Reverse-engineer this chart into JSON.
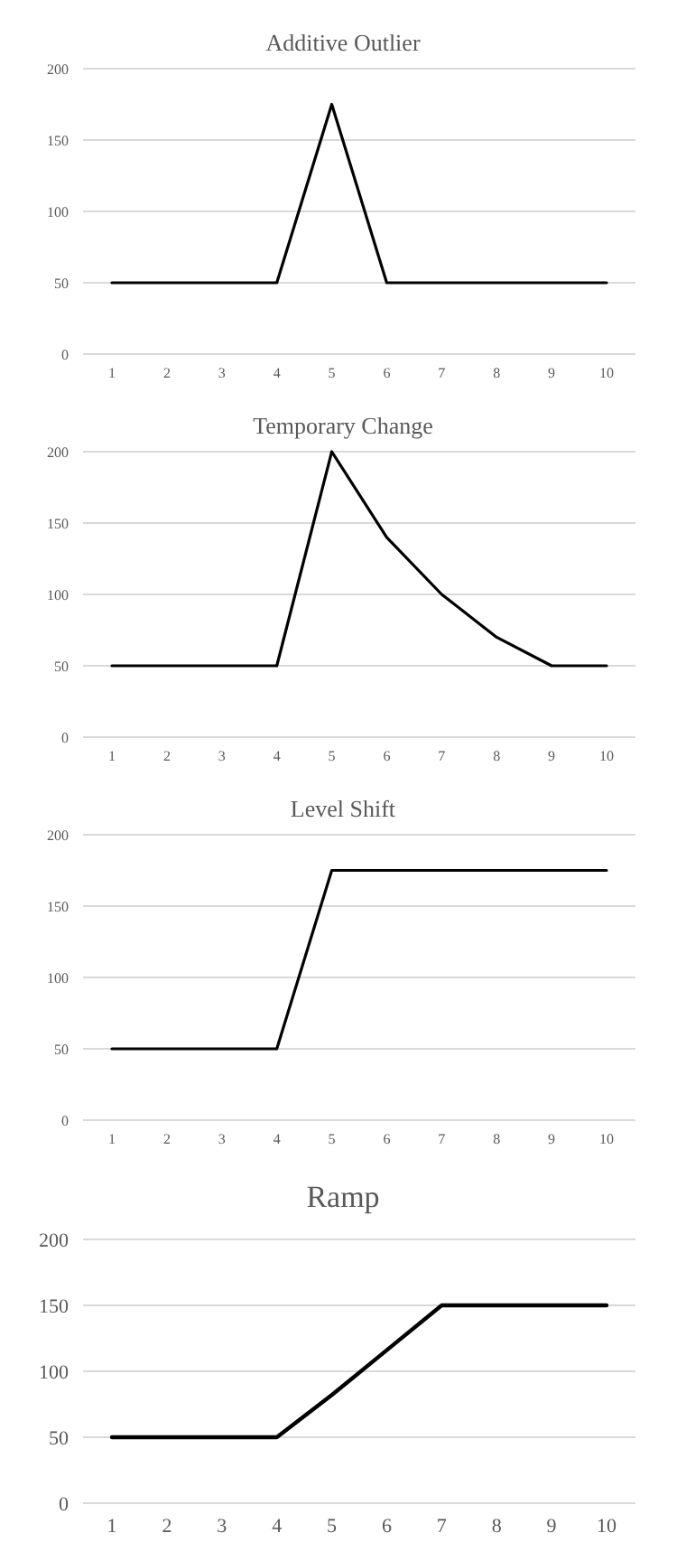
{
  "chart_data": [
    {
      "type": "line",
      "title": "Additive Outlier",
      "categories": [
        "1",
        "2",
        "3",
        "4",
        "5",
        "6",
        "7",
        "8",
        "9",
        "10"
      ],
      "series": [
        {
          "color": "#000000",
          "values": [
            50,
            50,
            50,
            50,
            175,
            50,
            50,
            50,
            50,
            50
          ]
        }
      ],
      "ylim": [
        0,
        200
      ],
      "yticks": [
        0,
        50,
        100,
        150,
        200
      ],
      "grid": "y"
    },
    {
      "type": "line",
      "title": "Temporary Change",
      "categories": [
        "1",
        "2",
        "3",
        "4",
        "5",
        "6",
        "7",
        "8",
        "9",
        "10"
      ],
      "series": [
        {
          "color": "#000000",
          "values": [
            50,
            50,
            50,
            50,
            200,
            140,
            100,
            70,
            50,
            50
          ]
        }
      ],
      "ylim": [
        0,
        200
      ],
      "yticks": [
        0,
        50,
        100,
        150,
        200
      ],
      "grid": "y"
    },
    {
      "type": "line",
      "title": "Level Shift",
      "categories": [
        "1",
        "2",
        "3",
        "4",
        "5",
        "6",
        "7",
        "8",
        "9",
        "10"
      ],
      "series": [
        {
          "color": "#000000",
          "values": [
            50,
            50,
            50,
            50,
            175,
            175,
            175,
            175,
            175,
            175
          ]
        }
      ],
      "ylim": [
        0,
        200
      ],
      "yticks": [
        0,
        50,
        100,
        150,
        200
      ],
      "grid": "y"
    },
    {
      "type": "line",
      "title": "Ramp",
      "categories": [
        "1",
        "2",
        "3",
        "4",
        "5",
        "6",
        "7",
        "8",
        "9",
        "10"
      ],
      "series": [
        {
          "color": "#000000",
          "values": [
            50,
            50,
            50,
            50,
            82,
            116,
            150,
            150,
            150,
            150
          ]
        }
      ],
      "ylim": [
        0,
        200
      ],
      "yticks": [
        0,
        50,
        100,
        150,
        200
      ],
      "grid": "y"
    }
  ]
}
